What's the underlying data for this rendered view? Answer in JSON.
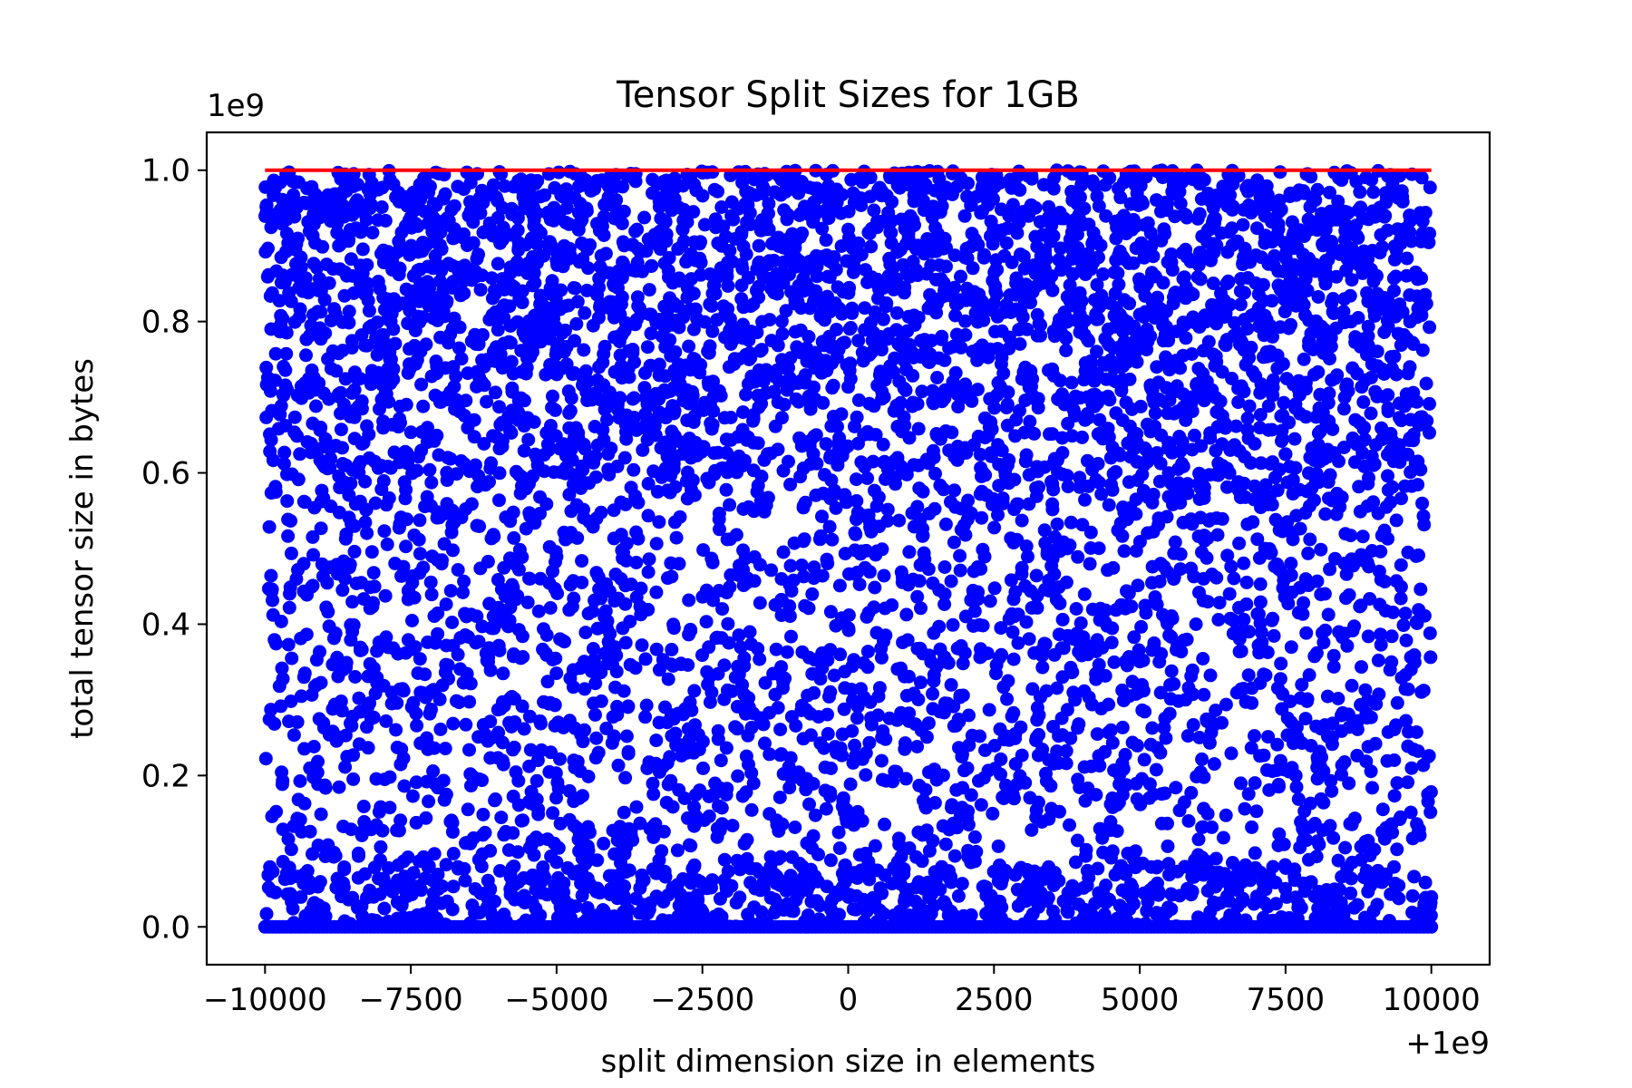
{
  "chart_data": {
    "type": "scatter",
    "title": "Tensor Split Sizes for 1GB",
    "xlabel": "split dimension size in elements",
    "ylabel": "total tensor size in bytes",
    "x_offset_label": "+1e9",
    "y_scale_label": "1e9",
    "xlim": [
      999989000,
      1000011000
    ],
    "ylim": [
      -50000000,
      1050000000
    ],
    "xticks": [
      999990000,
      999992500,
      999995000,
      999997500,
      1000000000,
      1000002500,
      1000005000,
      1000007500,
      1000010000
    ],
    "xtick_labels": [
      "−10000",
      "−7500",
      "−5000",
      "−2500",
      "0",
      "2500",
      "5000",
      "7500",
      "10000"
    ],
    "yticks": [
      0,
      200000000,
      400000000,
      600000000,
      800000000,
      1000000000
    ],
    "ytick_labels": [
      "0.0",
      "0.2",
      "0.4",
      "0.6",
      "0.8",
      "1.0"
    ],
    "grid": false,
    "series": [
      {
        "role": "split sizes",
        "color": "#0000ff",
        "marker": "circle",
        "x_range": [
          999990000,
          1000010000
        ],
        "y_range": [
          0,
          1000000000
        ],
        "point_count_estimate": 6000,
        "description": "dense band at y=0 across full x range; points scattered between 0 and 1e9, densest above 0.5e9"
      },
      {
        "role": "limit line",
        "color": "#ff0000",
        "type": "line",
        "x": [
          999990000,
          1000010000
        ],
        "y": [
          1000000000,
          1000000000
        ]
      }
    ]
  }
}
